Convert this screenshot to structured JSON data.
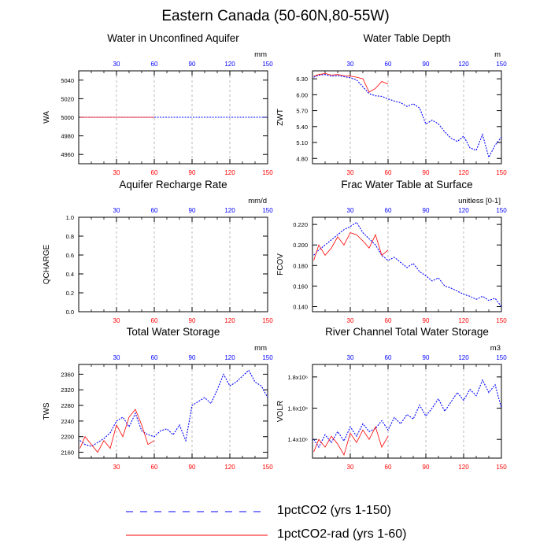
{
  "title": "Eastern Canada (50-60N,80-55W)",
  "colors": {
    "run1": "#0000ff",
    "run2": "#ff0000",
    "grid": "#aaaaaa"
  },
  "legend": [
    {
      "label": "1pctCO2 (yrs 1-150)",
      "style": "dashed",
      "color": "#0000ff"
    },
    {
      "label": "1pctCO2-rad (yrs 1-60)",
      "style": "solid",
      "color": "#ff0000"
    }
  ],
  "chart_data": [
    {
      "type": "line",
      "title": "Water in Unconfined Aquifer",
      "ylabel": "WA",
      "units": "mm",
      "xlim": [
        0,
        150
      ],
      "ylim": [
        4950,
        5050
      ],
      "yticks": [
        4960,
        4980,
        5000,
        5020,
        5040
      ],
      "ytick_labels": [
        "4960",
        "4980",
        "5000",
        "5020",
        "5040"
      ],
      "xticks_bottom": [
        30,
        60,
        90,
        120,
        150
      ],
      "xticks_top": [
        30,
        60,
        90,
        120,
        150
      ],
      "series": [
        {
          "x": [
            1,
            150
          ],
          "y": [
            5000,
            5000
          ]
        },
        {
          "x": [
            1,
            60
          ],
          "y": [
            5000,
            5000
          ]
        }
      ]
    },
    {
      "type": "line",
      "title": "Water Table Depth",
      "ylabel": "ZWT",
      "units": "m",
      "xlim": [
        0,
        150
      ],
      "ylim": [
        4.7,
        6.45
      ],
      "yticks": [
        4.8,
        5.1,
        5.4,
        5.7,
        6.0,
        6.3
      ],
      "ytick_labels": [
        "4.80",
        "5.10",
        "5.40",
        "5.70",
        "6.00",
        "6.30"
      ],
      "xticks_bottom": [
        30,
        60,
        90,
        120,
        150
      ],
      "xticks_top": [
        30,
        60,
        90,
        120,
        150
      ],
      "series": [
        {
          "x": [
            1,
            5,
            10,
            15,
            20,
            25,
            30,
            35,
            40,
            45,
            50,
            55,
            60,
            65,
            70,
            75,
            80,
            85,
            90,
            95,
            100,
            105,
            110,
            115,
            120,
            125,
            130,
            135,
            140,
            145,
            150
          ],
          "y": [
            6.33,
            6.37,
            6.38,
            6.35,
            6.36,
            6.34,
            6.32,
            6.28,
            6.15,
            6.02,
            5.98,
            5.97,
            5.92,
            5.88,
            5.85,
            5.78,
            5.83,
            5.75,
            5.45,
            5.52,
            5.45,
            5.3,
            5.18,
            5.12,
            5.22,
            5.0,
            4.95,
            5.25,
            4.82,
            5.05,
            5.2
          ]
        },
        {
          "x": [
            1,
            5,
            10,
            15,
            20,
            25,
            30,
            35,
            40,
            45,
            50,
            55,
            60
          ],
          "y": [
            6.35,
            6.38,
            6.4,
            6.37,
            6.38,
            6.36,
            6.35,
            6.33,
            6.3,
            6.05,
            6.12,
            6.25,
            6.2
          ]
        }
      ]
    },
    {
      "type": "line",
      "title": "Aquifer Recharge Rate",
      "ylabel": "QCHARGE",
      "units": "mm/d",
      "xlim": [
        0,
        150
      ],
      "ylim": [
        0.0,
        1.0
      ],
      "yticks": [
        0.0,
        0.2,
        0.4,
        0.6,
        0.8,
        1.0
      ],
      "ytick_labels": [
        "0.0",
        "0.2",
        "0.4",
        "0.6",
        "0.8",
        "1.0"
      ],
      "xticks_bottom": [
        30,
        60,
        90,
        120,
        150
      ],
      "xticks_top": [
        30,
        60,
        90,
        120,
        150
      ],
      "series": []
    },
    {
      "type": "line",
      "title": "Frac Water Table at Surface",
      "ylabel": "FCOV",
      "units": "unitless [0-1]",
      "xlim": [
        0,
        150
      ],
      "ylim": [
        0.135,
        0.227
      ],
      "yticks": [
        0.14,
        0.16,
        0.18,
        0.2,
        0.22
      ],
      "ytick_labels": [
        "0.140",
        "0.160",
        "0.180",
        "0.200",
        "0.220"
      ],
      "xticks_bottom": [
        30,
        60,
        90,
        120,
        150
      ],
      "xticks_top": [
        30,
        60,
        90,
        120,
        150
      ],
      "series": [
        {
          "x": [
            1,
            5,
            10,
            15,
            20,
            25,
            30,
            35,
            40,
            45,
            50,
            55,
            60,
            65,
            70,
            75,
            80,
            85,
            90,
            95,
            100,
            105,
            110,
            115,
            120,
            125,
            130,
            135,
            140,
            145,
            150
          ],
          "y": [
            0.19,
            0.195,
            0.2,
            0.205,
            0.21,
            0.215,
            0.218,
            0.222,
            0.212,
            0.206,
            0.2,
            0.19,
            0.185,
            0.188,
            0.183,
            0.178,
            0.182,
            0.174,
            0.17,
            0.165,
            0.168,
            0.16,
            0.158,
            0.155,
            0.152,
            0.15,
            0.147,
            0.15,
            0.146,
            0.148,
            0.14
          ]
        },
        {
          "x": [
            1,
            5,
            10,
            15,
            20,
            25,
            30,
            35,
            40,
            45,
            50,
            55,
            60
          ],
          "y": [
            0.185,
            0.2,
            0.19,
            0.197,
            0.208,
            0.2,
            0.212,
            0.21,
            0.204,
            0.197,
            0.21,
            0.19,
            0.195
          ]
        }
      ]
    },
    {
      "type": "line",
      "title": "Total Water Storage",
      "ylabel": "TWS",
      "units": "mm",
      "xlim": [
        0,
        150
      ],
      "ylim": [
        2145,
        2385
      ],
      "yticks": [
        2160,
        2200,
        2240,
        2280,
        2320,
        2360
      ],
      "ytick_labels": [
        "2160",
        "2200",
        "2240",
        "2280",
        "2320",
        "2360"
      ],
      "xticks_bottom": [
        30,
        60,
        90,
        120,
        150
      ],
      "xticks_top": [
        30,
        60,
        90,
        120,
        150
      ],
      "series": [
        {
          "x": [
            1,
            5,
            10,
            15,
            20,
            25,
            30,
            35,
            40,
            45,
            50,
            55,
            60,
            65,
            70,
            75,
            80,
            85,
            90,
            95,
            100,
            105,
            110,
            115,
            120,
            125,
            130,
            135,
            140,
            145,
            150
          ],
          "y": [
            2190,
            2180,
            2175,
            2185,
            2195,
            2210,
            2240,
            2250,
            2225,
            2260,
            2215,
            2205,
            2200,
            2215,
            2220,
            2205,
            2230,
            2190,
            2280,
            2290,
            2300,
            2285,
            2320,
            2360,
            2330,
            2340,
            2355,
            2370,
            2340,
            2330,
            2300
          ]
        },
        {
          "x": [
            1,
            5,
            10,
            15,
            20,
            25,
            30,
            35,
            40,
            45,
            50,
            55,
            60
          ],
          "y": [
            2170,
            2200,
            2180,
            2160,
            2190,
            2170,
            2230,
            2200,
            2250,
            2270,
            2230,
            2180,
            2190
          ]
        }
      ]
    },
    {
      "type": "line",
      "title": "River Channel Total Water Storage",
      "ylabel": "VOLR",
      "units": "m3",
      "xlim": [
        0,
        150
      ],
      "ylim": [
        1280000,
        1880000
      ],
      "yticks": [
        1400000,
        1600000,
        1800000
      ],
      "ytick_labels": [
        "1.4x10⁶",
        "1.6x10⁶",
        "1.8x10⁶"
      ],
      "xticks_bottom": [
        30,
        60,
        90,
        120,
        150
      ],
      "xticks_top": [
        30,
        60,
        90,
        120,
        150
      ],
      "series": [
        {
          "x": [
            1,
            5,
            10,
            15,
            20,
            25,
            30,
            35,
            40,
            45,
            50,
            55,
            60,
            65,
            70,
            75,
            80,
            85,
            90,
            95,
            100,
            105,
            110,
            115,
            120,
            125,
            130,
            135,
            140,
            145,
            150
          ],
          "y": [
            1400000,
            1350000,
            1430000,
            1380000,
            1450000,
            1390000,
            1480000,
            1420000,
            1500000,
            1450000,
            1470000,
            1520000,
            1460000,
            1540000,
            1500000,
            1560000,
            1530000,
            1620000,
            1550000,
            1600000,
            1660000,
            1580000,
            1640000,
            1700000,
            1650000,
            1720000,
            1680000,
            1780000,
            1700000,
            1750000,
            1600000
          ]
        },
        {
          "x": [
            1,
            5,
            10,
            15,
            20,
            25,
            30,
            35,
            40,
            45,
            50,
            55,
            60
          ],
          "y": [
            1320000,
            1400000,
            1350000,
            1420000,
            1370000,
            1300000,
            1440000,
            1380000,
            1460000,
            1400000,
            1480000,
            1350000,
            1420000
          ]
        }
      ]
    }
  ]
}
